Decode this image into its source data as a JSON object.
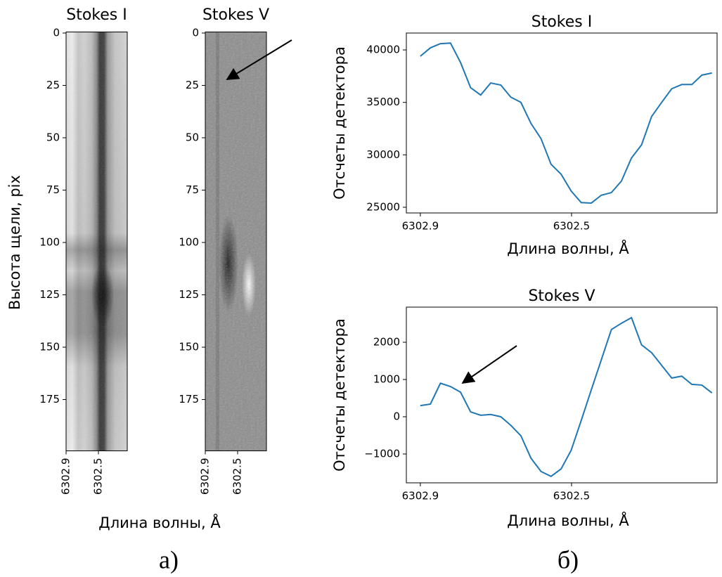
{
  "chart_data": [
    {
      "type": "image",
      "title": "Stokes I",
      "ylabel": "Высота щели, pix",
      "xlabel": "Длина волны, Å",
      "ylim": [
        -0.5,
        199.5
      ],
      "yticks": [
        0,
        25,
        50,
        75,
        100,
        125,
        150,
        175
      ],
      "xlim": [
        6302.9,
        6302.1435
      ],
      "xticks": [
        6302.9,
        6302.5
      ]
    },
    {
      "type": "image",
      "title": "Stokes V",
      "ylim": [
        -0.5,
        199.5
      ],
      "yticks": [
        0,
        25,
        50,
        75,
        100,
        125,
        150,
        175
      ],
      "xlim": [
        6302.9,
        6302.1435
      ],
      "xticks": [
        6302.9,
        6302.5
      ]
    },
    {
      "type": "line",
      "title": "Stokes I",
      "xlabel": "Длина волны, Å",
      "ylabel": "Отсчеты детектора",
      "xlim": [
        6302.937,
        6302.115
      ],
      "xticks": [
        6302.9,
        6302.5
      ],
      "ylim": [
        24460,
        41610
      ],
      "yticks": [
        25000,
        30000,
        35000,
        40000
      ],
      "x": [
        6302.9,
        6302.8734,
        6302.8468,
        6302.8202,
        6302.7936,
        6302.767,
        6302.7404,
        6302.7138,
        6302.6872,
        6302.6606,
        6302.634,
        6302.6074,
        6302.5808,
        6302.5542,
        6302.5276,
        6302.501,
        6302.4744,
        6302.4478,
        6302.4212,
        6302.3946,
        6302.368,
        6302.3414,
        6302.3148,
        6302.2882,
        6302.2616,
        6302.235,
        6302.2084,
        6302.1818,
        6302.1552,
        6302.1286
      ],
      "color": "#1f77b4",
      "values": [
        39400,
        40200,
        40600,
        40650,
        38800,
        36400,
        35700,
        36850,
        36650,
        35500,
        35000,
        33000,
        31550,
        29100,
        28150,
        26550,
        25450,
        25400,
        26150,
        26400,
        27500,
        29700,
        30950,
        33650,
        35000,
        36300,
        36700,
        36700,
        37600,
        37800
      ]
    },
    {
      "type": "line",
      "title": "Stokes V",
      "xlabel": "Длина волны, Å",
      "ylabel": "Отсчеты детектора",
      "xlim": [
        6302.937,
        6302.115
      ],
      "xticks": [
        6302.9,
        6302.5
      ],
      "ylim": [
        -1774,
        2943
      ],
      "yticks": [
        {
          "value": -1000,
          "label": "−1000"
        },
        0,
        1000,
        2000
      ],
      "x": [
        6302.9,
        6302.8734,
        6302.8468,
        6302.8202,
        6302.7936,
        6302.767,
        6302.7404,
        6302.7138,
        6302.6872,
        6302.6606,
        6302.634,
        6302.6074,
        6302.5808,
        6302.5542,
        6302.5276,
        6302.501,
        6302.4744,
        6302.4478,
        6302.4212,
        6302.3946,
        6302.368,
        6302.3414,
        6302.3148,
        6302.2882,
        6302.2616,
        6302.235,
        6302.2084,
        6302.1818,
        6302.1552,
        6302.1286
      ],
      "color": "#1f77b4",
      "values": [
        300,
        340,
        900,
        810,
        660,
        130,
        40,
        60,
        0,
        -230,
        -510,
        -1110,
        -1470,
        -1600,
        -1400,
        -900,
        -100,
        720,
        1530,
        2340,
        2510,
        2660,
        1930,
        1720,
        1380,
        1040,
        1090,
        870,
        850,
        640
      ]
    }
  ],
  "panel_labels": [
    "а)",
    "б)"
  ]
}
